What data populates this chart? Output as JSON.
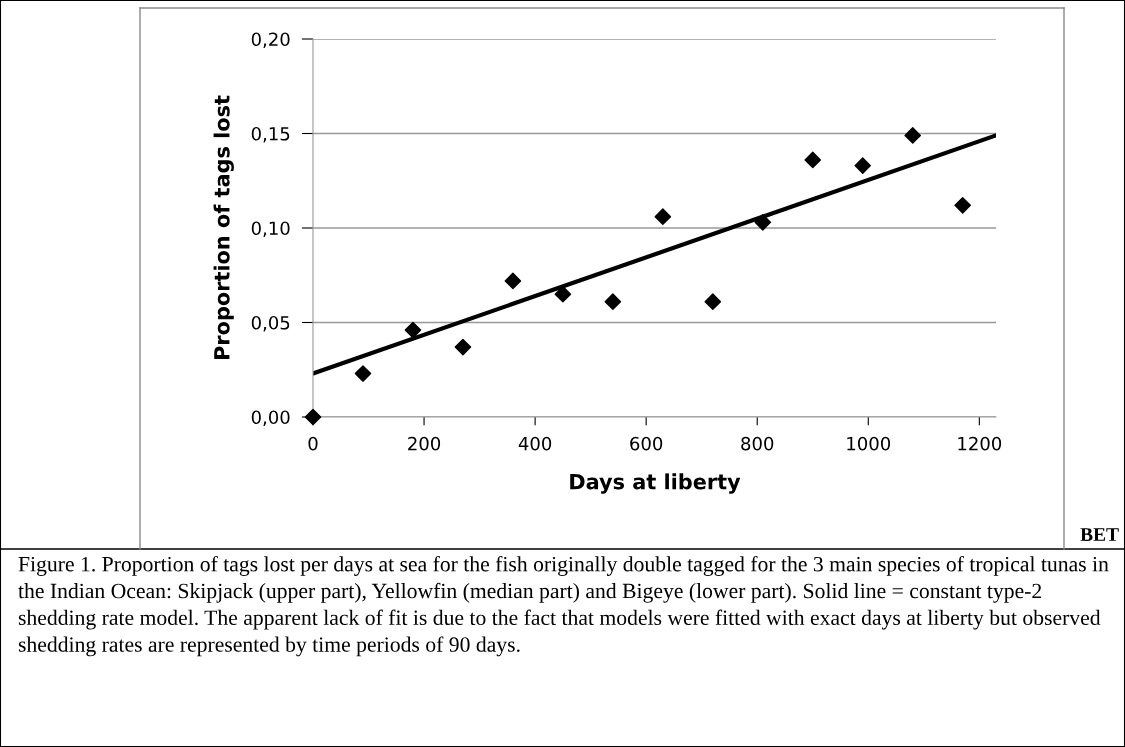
{
  "chart_data": {
    "type": "scatter",
    "xlabel": "Days at liberty",
    "ylabel": "Proportion of tags lost",
    "series": [
      {
        "color": "#000000",
        "marker": "diamond",
        "x": [
          0,
          90,
          180,
          270,
          360,
          450,
          540,
          630,
          720,
          810,
          900,
          990,
          1080,
          1170
        ],
        "values": [
          0.0,
          0.023,
          0.046,
          0.037,
          0.072,
          0.065,
          0.061,
          0.106,
          0.061,
          0.103,
          0.136,
          0.133,
          0.149,
          0.112
        ]
      },
      {
        "type": "line",
        "color": "#000000",
        "marker": "none",
        "line_style": "solid",
        "x": [
          0,
          1230
        ],
        "values": [
          0.023,
          0.149
        ]
      }
    ],
    "xlim": [
      0,
      1230
    ],
    "xticks": [
      0,
      200,
      400,
      600,
      800,
      1000,
      1200
    ],
    "ylim": [
      0,
      0.2
    ],
    "yticks": [
      {
        "value": 0,
        "label": "0,00"
      },
      {
        "value": 0.05,
        "label": "0,05"
      },
      {
        "value": 0.1,
        "label": "0,10"
      },
      {
        "value": 0.15,
        "label": "0,15"
      },
      {
        "value": 0.2,
        "label": "0,20"
      }
    ],
    "grid": "y",
    "legend": false,
    "annotations": [
      "BET",
      "Figure 1. Proportion of tags lost per days at sea for the fish originally double tagged for the 3 main species of tropical tunas in the Indian Ocean: Skipjack (upper part), Yellowfin (median part) and Bigeye (lower part). Solid line = constant type-2 shedding rate model. The apparent lack of fit is due to the fact that models were fitted with exact days at liberty but observed shedding rates are represented by time periods of 90 days."
    ]
  }
}
